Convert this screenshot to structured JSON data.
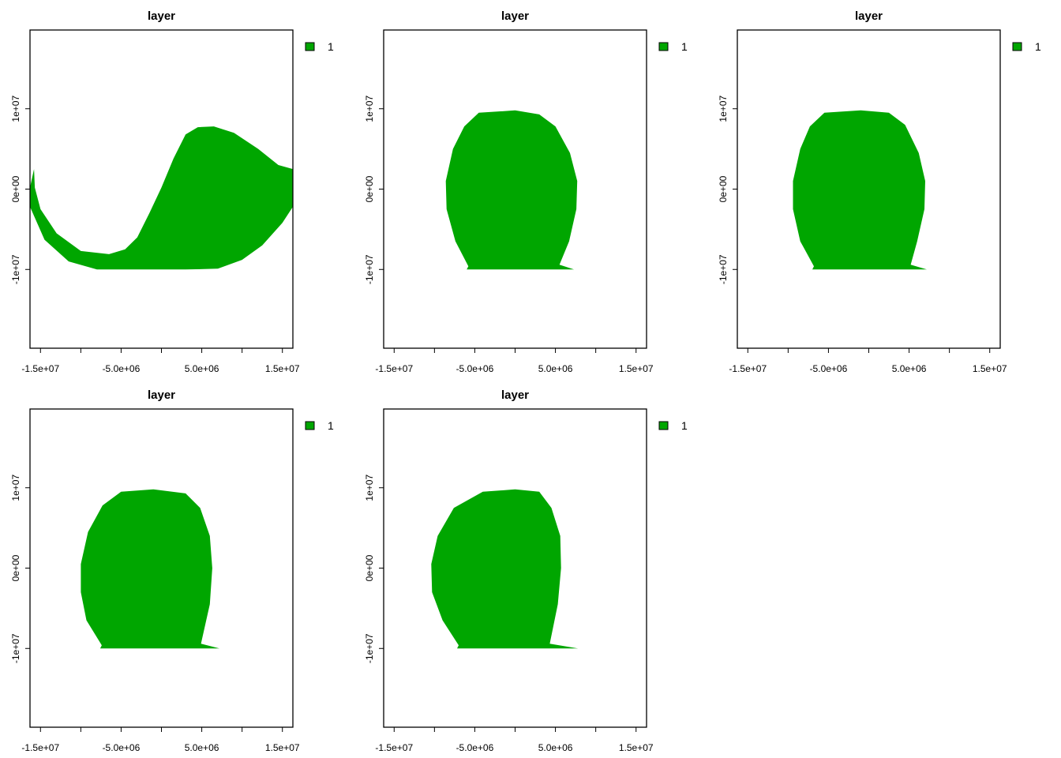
{
  "colors": {
    "fill": "#00a600",
    "frame": "#000000",
    "background": "#ffffff"
  },
  "chart_data": [
    {
      "type": "area",
      "title": "layer",
      "xlim": [
        -16300000,
        16300000
      ],
      "ylim": [
        -19800000,
        19800000
      ],
      "x_ticks": [
        -15000000,
        -10000000,
        -5000000,
        0,
        5000000,
        10000000,
        15000000
      ],
      "x_tick_labels": [
        "-1.5e+07",
        "",
        "-5.0e+06",
        "",
        "5.0e+06",
        "",
        "1.5e+07"
      ],
      "y_ticks": [
        -10000000,
        0,
        10000000
      ],
      "y_tick_labels": [
        "-1e+07",
        "0e+00",
        "1e+07"
      ],
      "legend": {
        "entries": [
          {
            "label": "1",
            "color": "#00a600"
          }
        ],
        "position": "right-top"
      },
      "shape": [
        [
          -16300000,
          200000
        ],
        [
          -15800000,
          2500000
        ],
        [
          -15700000,
          200000
        ],
        [
          -15000000,
          -2500000
        ],
        [
          -13000000,
          -5500000
        ],
        [
          -10000000,
          -7700000
        ],
        [
          -6500000,
          -8100000
        ],
        [
          -4500000,
          -7500000
        ],
        [
          -3000000,
          -6000000
        ],
        [
          -1500000,
          -3000000
        ],
        [
          0,
          200000
        ],
        [
          1500000,
          3800000
        ],
        [
          3000000,
          6800000
        ],
        [
          4500000,
          7700000
        ],
        [
          6500000,
          7800000
        ],
        [
          9000000,
          7000000
        ],
        [
          12000000,
          5000000
        ],
        [
          14500000,
          3000000
        ],
        [
          16300000,
          2500000
        ],
        [
          16300000,
          -2200000
        ],
        [
          15000000,
          -4200000
        ],
        [
          12500000,
          -7000000
        ],
        [
          10000000,
          -8800000
        ],
        [
          7000000,
          -9900000
        ],
        [
          3000000,
          -10000000
        ],
        [
          -8000000,
          -10000000
        ],
        [
          -11500000,
          -9000000
        ],
        [
          -14500000,
          -6300000
        ],
        [
          -16300000,
          -2200000
        ]
      ]
    },
    {
      "type": "area",
      "title": "layer",
      "xlim": [
        -16300000,
        16300000
      ],
      "ylim": [
        -19800000,
        19800000
      ],
      "x_ticks": [
        -15000000,
        -10000000,
        -5000000,
        0,
        5000000,
        10000000,
        15000000
      ],
      "x_tick_labels": [
        "-1.5e+07",
        "",
        "-5.0e+06",
        "",
        "5.0e+06",
        "",
        "1.5e+07"
      ],
      "y_ticks": [
        -10000000,
        0,
        10000000
      ],
      "y_tick_labels": [
        "-1e+07",
        "0e+00",
        "1e+07"
      ],
      "legend": {
        "entries": [
          {
            "label": "1",
            "color": "#00a600"
          }
        ],
        "position": "right-top"
      },
      "shape": [
        [
          -4500000,
          9500000
        ],
        [
          0,
          9800000
        ],
        [
          3000000,
          9300000
        ],
        [
          5000000,
          7800000
        ],
        [
          6800000,
          4500000
        ],
        [
          7700000,
          1000000
        ],
        [
          7600000,
          -2500000
        ],
        [
          6700000,
          -6500000
        ],
        [
          5500000,
          -9400000
        ],
        [
          7300000,
          -10000000
        ],
        [
          -6000000,
          -10000000
        ],
        [
          -5800000,
          -9600000
        ],
        [
          -7400000,
          -6500000
        ],
        [
          -8500000,
          -2500000
        ],
        [
          -8600000,
          1000000
        ],
        [
          -7700000,
          5000000
        ],
        [
          -6300000,
          7800000
        ]
      ]
    },
    {
      "type": "area",
      "title": "layer",
      "xlim": [
        -16300000,
        16300000
      ],
      "ylim": [
        -19800000,
        19800000
      ],
      "x_ticks": [
        -15000000,
        -10000000,
        -5000000,
        0,
        5000000,
        10000000,
        15000000
      ],
      "x_tick_labels": [
        "-1.5e+07",
        "",
        "-5.0e+06",
        "",
        "5.0e+06",
        "",
        "1.5e+07"
      ],
      "y_ticks": [
        -10000000,
        0,
        10000000
      ],
      "y_tick_labels": [
        "-1e+07",
        "0e+00",
        "1e+07"
      ],
      "legend": {
        "entries": [
          {
            "label": "1",
            "color": "#00a600"
          }
        ],
        "position": "right-top"
      },
      "shape": [
        [
          -5500000,
          9500000
        ],
        [
          -1000000,
          9800000
        ],
        [
          2500000,
          9500000
        ],
        [
          4500000,
          8000000
        ],
        [
          6200000,
          4500000
        ],
        [
          7000000,
          1000000
        ],
        [
          6900000,
          -2500000
        ],
        [
          6000000,
          -6500000
        ],
        [
          5200000,
          -9400000
        ],
        [
          7200000,
          -10000000
        ],
        [
          -7000000,
          -10000000
        ],
        [
          -6800000,
          -9600000
        ],
        [
          -8500000,
          -6500000
        ],
        [
          -9400000,
          -2500000
        ],
        [
          -9400000,
          1000000
        ],
        [
          -8500000,
          5000000
        ],
        [
          -7300000,
          7800000
        ]
      ]
    },
    {
      "type": "area",
      "title": "layer",
      "xlim": [
        -16300000,
        16300000
      ],
      "ylim": [
        -19800000,
        19800000
      ],
      "x_ticks": [
        -15000000,
        -10000000,
        -5000000,
        0,
        5000000,
        10000000,
        15000000
      ],
      "x_tick_labels": [
        "-1.5e+07",
        "",
        "-5.0e+06",
        "",
        "5.0e+06",
        "",
        "1.5e+07"
      ],
      "y_ticks": [
        -10000000,
        0,
        10000000
      ],
      "y_tick_labels": [
        "-1e+07",
        "0e+00",
        "1e+07"
      ],
      "legend": {
        "entries": [
          {
            "label": "1",
            "color": "#00a600"
          }
        ],
        "position": "right-top"
      },
      "shape": [
        [
          -5000000,
          9500000
        ],
        [
          -1000000,
          9800000
        ],
        [
          3000000,
          9300000
        ],
        [
          4800000,
          7500000
        ],
        [
          6000000,
          4000000
        ],
        [
          6300000,
          0
        ],
        [
          6000000,
          -4500000
        ],
        [
          4900000,
          -9400000
        ],
        [
          7200000,
          -10000000
        ],
        [
          -7600000,
          -10000000
        ],
        [
          -7400000,
          -9600000
        ],
        [
          -9300000,
          -6500000
        ],
        [
          -10000000,
          -3000000
        ],
        [
          -10000000,
          500000
        ],
        [
          -9100000,
          4500000
        ],
        [
          -7300000,
          7800000
        ]
      ]
    },
    {
      "type": "area",
      "title": "layer",
      "xlim": [
        -16300000,
        16300000
      ],
      "ylim": [
        -19800000,
        19800000
      ],
      "x_ticks": [
        -15000000,
        -10000000,
        -5000000,
        0,
        5000000,
        10000000,
        15000000
      ],
      "x_tick_labels": [
        "-1.5e+07",
        "",
        "-5.0e+06",
        "",
        "5.0e+06",
        "",
        "1.5e+07"
      ],
      "y_ticks": [
        -10000000,
        0,
        10000000
      ],
      "y_tick_labels": [
        "-1e+07",
        "0e+00",
        "1e+07"
      ],
      "legend": {
        "entries": [
          {
            "label": "1",
            "color": "#00a600"
          }
        ],
        "position": "right-top"
      },
      "shape": [
        [
          -4000000,
          9500000
        ],
        [
          0,
          9800000
        ],
        [
          3000000,
          9500000
        ],
        [
          4500000,
          7500000
        ],
        [
          5600000,
          4000000
        ],
        [
          5700000,
          0
        ],
        [
          5300000,
          -4500000
        ],
        [
          4300000,
          -9400000
        ],
        [
          7800000,
          -10000000
        ],
        [
          -7200000,
          -10000000
        ],
        [
          -7000000,
          -9600000
        ],
        [
          -9000000,
          -6500000
        ],
        [
          -10300000,
          -3000000
        ],
        [
          -10400000,
          500000
        ],
        [
          -9600000,
          4000000
        ],
        [
          -7600000,
          7500000
        ]
      ]
    }
  ]
}
